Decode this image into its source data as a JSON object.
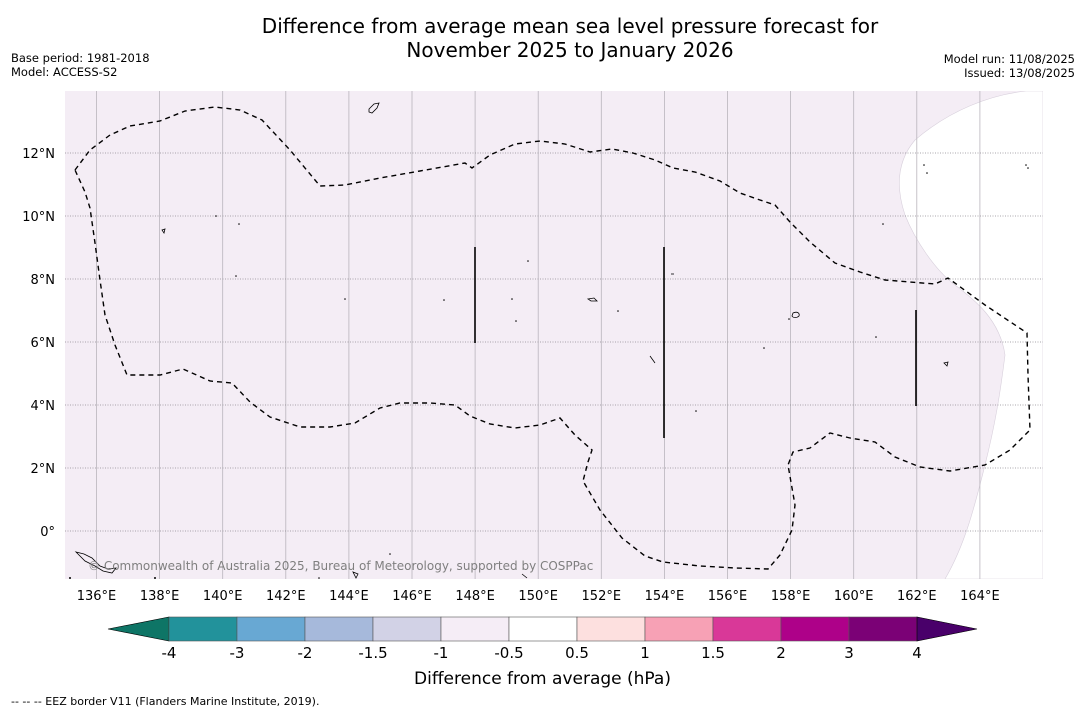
{
  "title_line1": "Difference from average mean sea level pressure forecast for",
  "title_line2": "November 2025 to January 2026",
  "meta_left": {
    "base_period": "Base period: 1981-2018",
    "model": "Model: ACCESS-S2"
  },
  "meta_right": {
    "model_run": "Model run: 11/08/2025",
    "issued": "Issued: 13/08/2025"
  },
  "map": {
    "lat_labels": [
      "12°N",
      "10°N",
      "8°N",
      "6°N",
      "4°N",
      "2°N",
      "0°"
    ],
    "lon_labels": [
      "136°E",
      "138°E",
      "140°E",
      "142°E",
      "144°E",
      "146°E",
      "148°E",
      "150°E",
      "152°E",
      "154°E",
      "156°E",
      "158°E",
      "160°E",
      "162°E",
      "164°E"
    ],
    "copyright": "© Commonwealth of Australia 2025, Bureau of Meteorology, supported by COSPPac",
    "region_fill": "#f4edf5",
    "eez_border_style": "dashed black"
  },
  "colorbar": {
    "ticks": [
      "-4",
      "-3",
      "-2",
      "-1.5",
      "-1",
      "-0.5",
      "0.5",
      "1",
      "1.5",
      "2",
      "3",
      "4"
    ],
    "colors": [
      "#0e7566",
      "#22929b",
      "#68a8d3",
      "#a6b9db",
      "#d2d2e6",
      "#f5edf6",
      "#ffffff",
      "#fde0df",
      "#f7a1b5",
      "#d93898",
      "#ae0189",
      "#7b0176",
      "#49006a"
    ],
    "label": "Difference from average (hPa)"
  },
  "footnote": "-- -- -- EEZ border V11 (Flanders Marine Institute, 2019)."
}
